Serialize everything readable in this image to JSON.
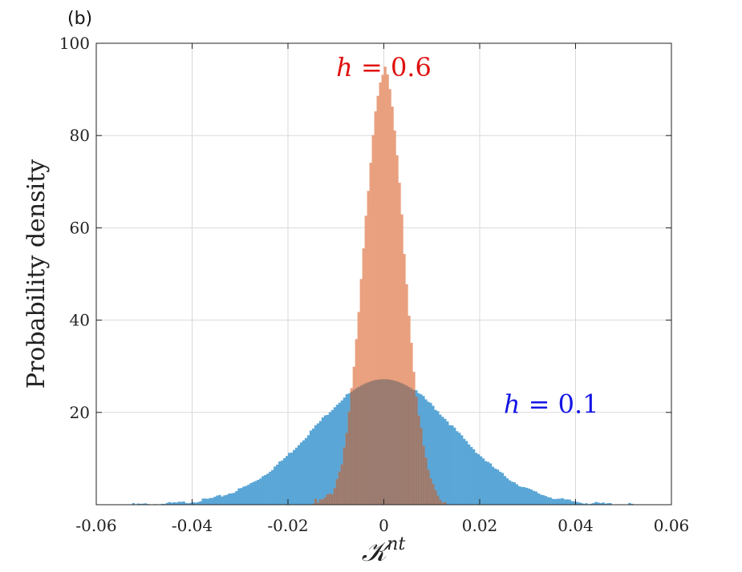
{
  "panel_label": "(b)",
  "colors": {
    "blue_hist": "#5aa6d6",
    "orange_hist": "#e9a07f",
    "overlap": "#9a7b6f",
    "h06_text": "#e01010",
    "h01_text": "#1515e6"
  },
  "chart_data": {
    "type": "histogram",
    "xlabel": "𝒦nt",
    "xlabel_main": "𝒦",
    "xlabel_sup": "nt",
    "ylabel": "Probability density",
    "xlim": [
      -0.06,
      0.06
    ],
    "ylim": [
      0,
      100
    ],
    "xticks": [
      -0.06,
      -0.04,
      -0.02,
      0,
      0.02,
      0.04,
      0.06
    ],
    "xtick_labels": [
      "-0.06",
      "-0.04",
      "-0.02",
      "0",
      "0.02",
      "0.04",
      "0.06"
    ],
    "yticks": [
      20,
      40,
      60,
      80,
      100
    ],
    "ytick_labels": [
      "20",
      "40",
      "60",
      "80",
      "100"
    ],
    "grid": true,
    "series": [
      {
        "name": "h = 0.1",
        "x_range": [
          -0.053,
          0.052
        ],
        "peak": 27.2,
        "sigma": 0.0147,
        "color": "#5aa6d6"
      },
      {
        "name": "h = 0.6",
        "x_range": [
          -0.015,
          0.015
        ],
        "peak": 94,
        "sigma": 0.0041,
        "color": "#e9a07f"
      }
    ],
    "annotations": [
      {
        "text": "h = 0.6",
        "x": 0.0,
        "y": 95,
        "color": "#e01010"
      },
      {
        "text": "h = 0.1",
        "x": 0.025,
        "y": 22,
        "color": "#1515e6"
      }
    ]
  }
}
